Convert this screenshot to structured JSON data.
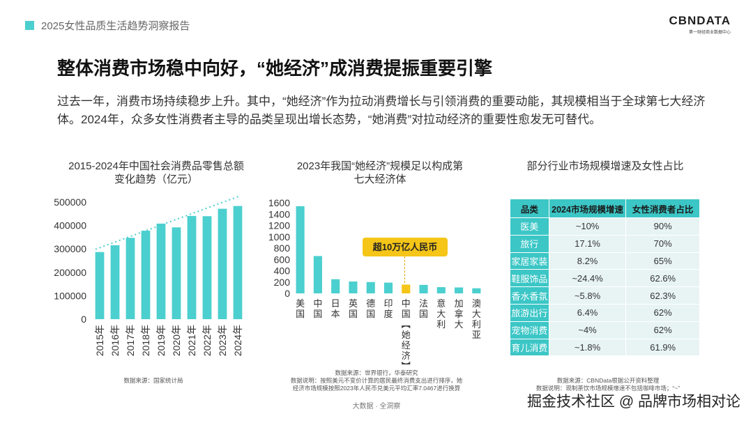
{
  "header": {
    "report_title": "2025女性品质生活趋势洞察报告"
  },
  "brand": {
    "logo": "CBNDATA",
    "sub": "第一财经商业数据中心"
  },
  "main_title": "整体消费市场稳中向好，“她经济”成消费提振重要引擎",
  "intro": "过去一年，消费市场持续稳步上升。其中，“她经济”作为拉动消费增长与引领消费的重要动能，其规模相当于全球第七大经济体。2024年，众多女性消费者主导的品类呈现出增长态势，“她消费”对拉动经济的重要性愈发无可替代。",
  "colors": {
    "accent": "#4ccfcf",
    "highlight": "#f5c518"
  },
  "chart_data": [
    {
      "type": "bar",
      "title": "2015-2024年中国社会消费品零售总额变化趋势（亿元）",
      "categories": [
        "2015年",
        "2016年",
        "2017年",
        "2018年",
        "2019年",
        "2020年",
        "2021年",
        "2022年",
        "2023年",
        "2024年"
      ],
      "values": [
        286588,
        315806,
        347327,
        377783,
        408017,
        391981,
        440823,
        439733,
        471495,
        483345
      ],
      "yticks": [
        "0",
        "100000",
        "200000",
        "300000",
        "400000",
        "500000"
      ],
      "ylim": [
        0,
        500000
      ],
      "trendline": true,
      "source": "数据来源：国家统计局"
    },
    {
      "type": "bar",
      "title": "2023年我国“她经济”规模足以构成第七大经济体",
      "categories": [
        "美国",
        "中国",
        "日本",
        "英国",
        "德国",
        "印度",
        "中国【她经济】",
        "法国",
        "意大利",
        "加拿大",
        "澳大利亚"
      ],
      "values": [
        1540,
        660,
        250,
        210,
        200,
        190,
        155,
        150,
        110,
        105,
        90
      ],
      "highlight_index": 6,
      "yticks": [
        "0",
        "200",
        "400",
        "600",
        "800",
        "1000",
        "1200",
        "1400",
        "1600"
      ],
      "ylim": [
        0,
        1600
      ],
      "callout": "超10万亿人民币",
      "source_lines": [
        "数据来源：世界银行，华泰研究",
        "数据说明：按照美元不变价计算的居民最终消费支出进行排序，她",
        "经济市场规模按照2023年人民币兑美元平均汇率7.0467进行换算"
      ]
    },
    {
      "type": "table",
      "title": "部分行业市场规模增速及女性占比",
      "headers": [
        "品类",
        "2024市场规模增速",
        "女性消费者占比"
      ],
      "rows": [
        [
          "医美",
          "~10%",
          "90%"
        ],
        [
          "旅行",
          "17.1%",
          "70%"
        ],
        [
          "家居家装",
          "8.2%",
          "65%"
        ],
        [
          "鞋服饰品",
          "~24.4%",
          "62.6%"
        ],
        [
          "香水香氛",
          "~5.8%",
          "62.3%"
        ],
        [
          "旅游出行",
          "6.4%",
          "62%"
        ],
        [
          "宠物消费",
          "~4%",
          "62%"
        ],
        [
          "育儿消费",
          "~1.8%",
          "61.9%"
        ]
      ],
      "source_lines": [
        "数据来源：CBNData根据公开资料整理",
        "数据说明：现制茶饮市场规模增速不包括咖啡市场；“~”"
      ]
    }
  ],
  "footer": {
    "center": "大数据 · 全洞察",
    "watermark": "掘金技术社区 @ 品牌市场相对论"
  }
}
